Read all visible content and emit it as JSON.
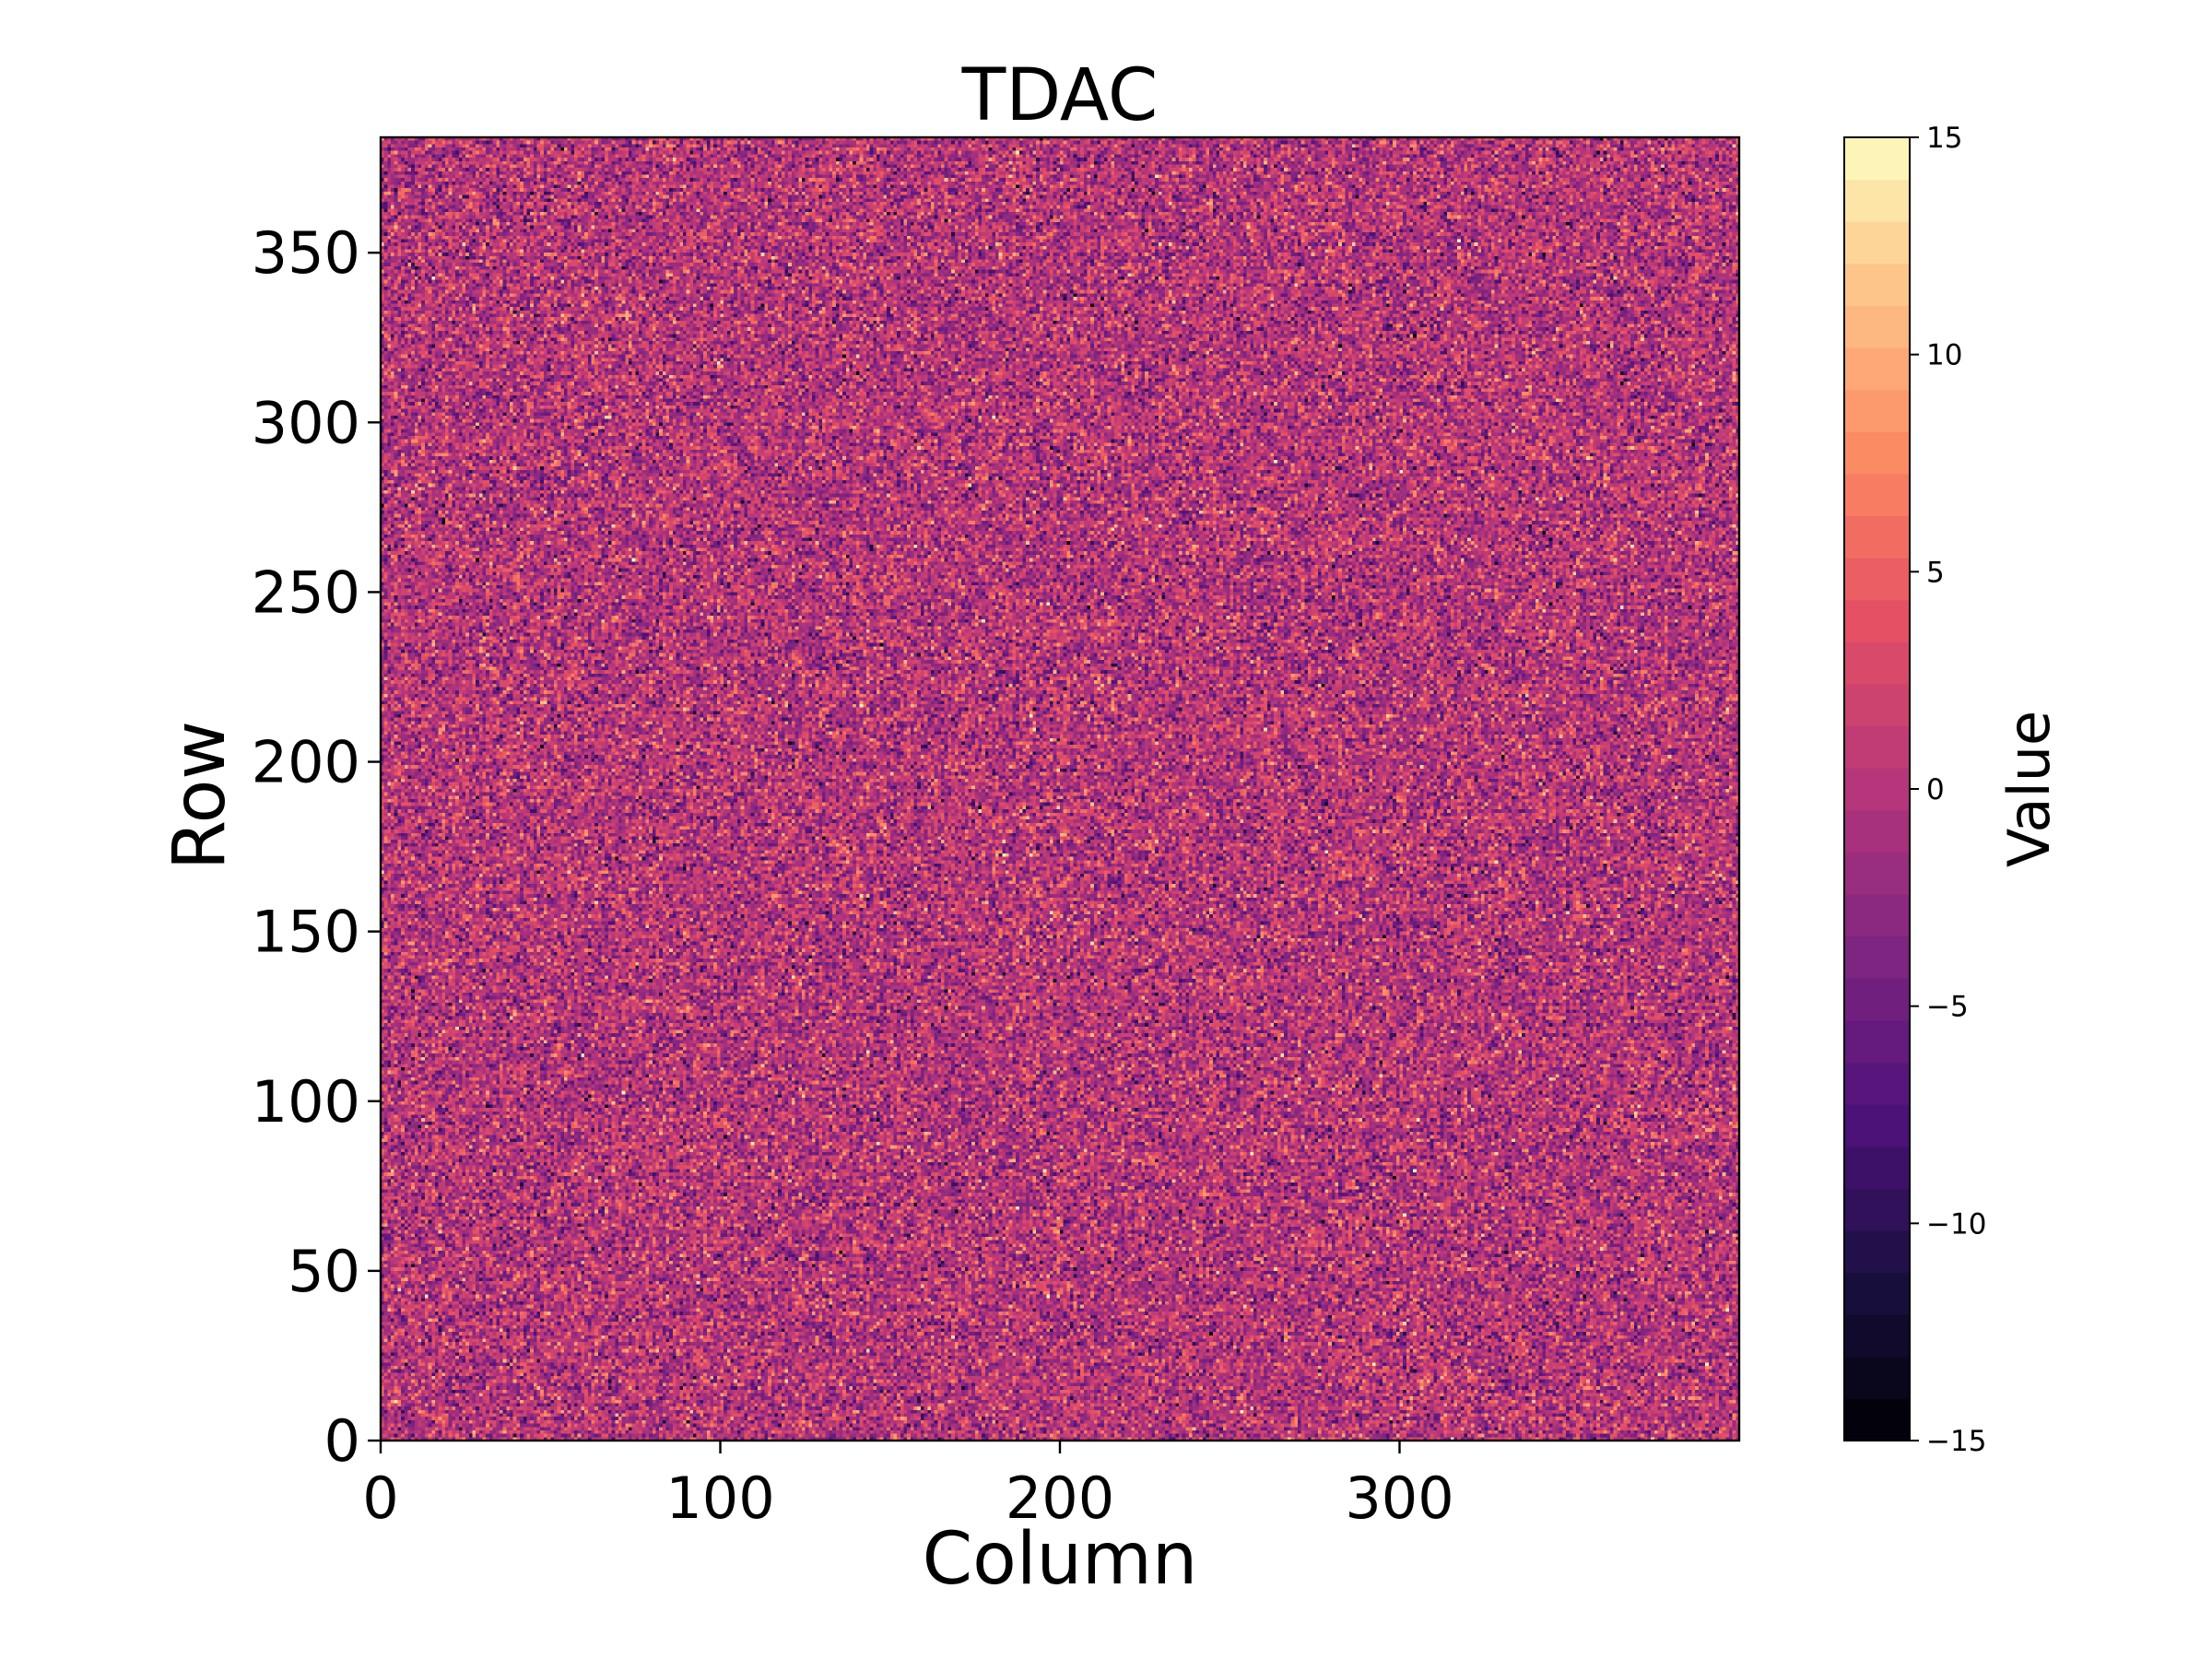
{
  "chart_data": {
    "type": "heatmap",
    "title": "TDAC",
    "xlabel": "Column",
    "ylabel": "Row",
    "xlim": [
      0,
      400
    ],
    "ylim": [
      0,
      384
    ],
    "x_ticks": [
      0,
      100,
      200,
      300
    ],
    "y_ticks": [
      0,
      50,
      100,
      150,
      200,
      250,
      300,
      350
    ],
    "colorbar": {
      "label": "Value",
      "vmin": -15,
      "vmax": 15,
      "levels": 31,
      "colormap": "magma",
      "ticks": [
        -15,
        -10,
        -5,
        0,
        5,
        10,
        15
      ],
      "tick_labels": [
        "−15",
        "−10",
        "−5",
        "0",
        "5",
        "10",
        "15"
      ]
    },
    "distribution": {
      "description": "random per-pixel TDAC values, roughly normal",
      "mean": 0,
      "std": 4,
      "clip": [
        -15,
        15
      ]
    }
  }
}
